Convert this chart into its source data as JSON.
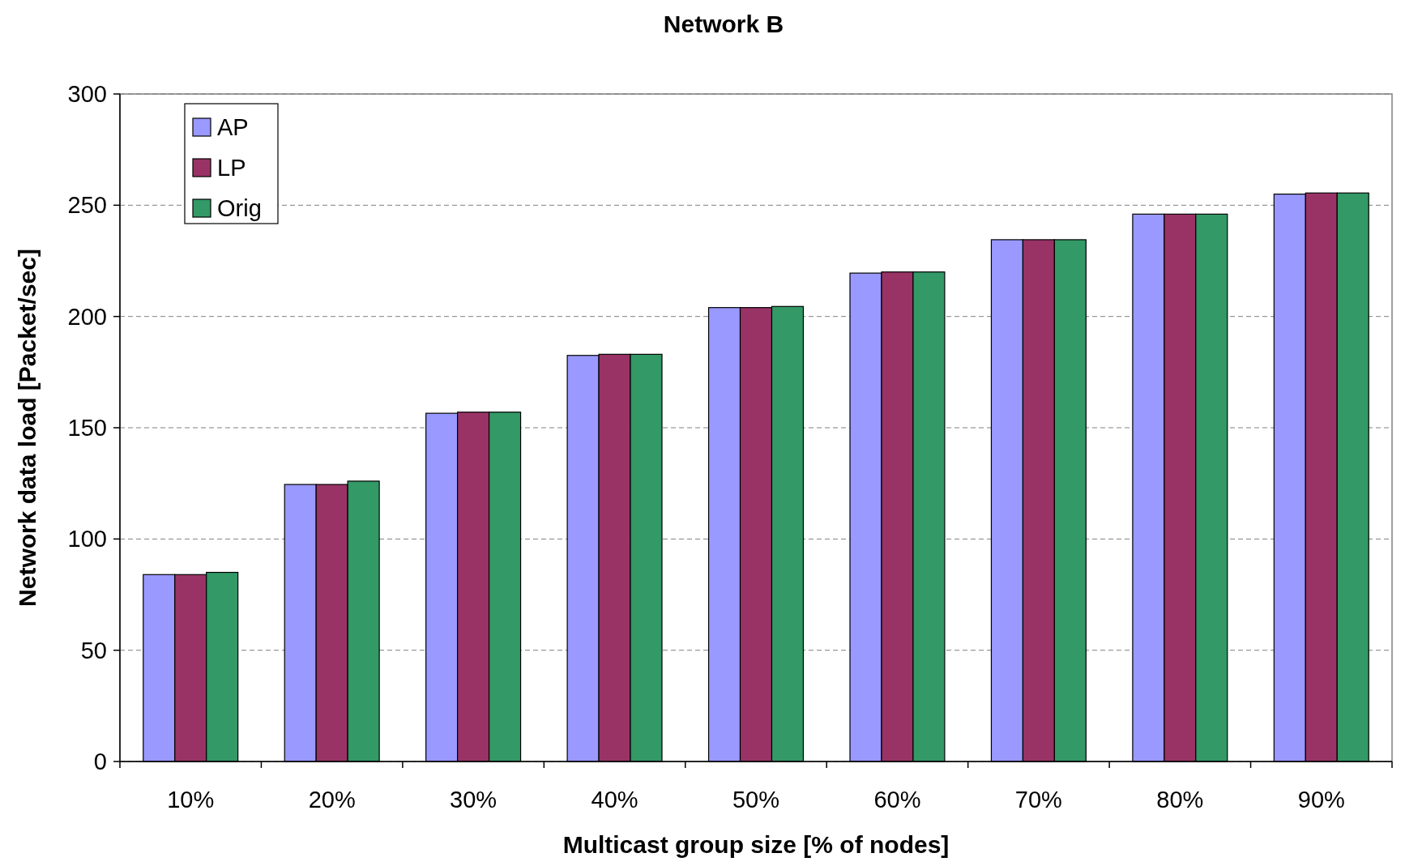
{
  "chart_data": {
    "type": "bar",
    "title": "Network B",
    "xlabel": "Multicast group size [% of nodes]",
    "ylabel": "Network data load [Packet/sec]",
    "categories": [
      "10%",
      "20%",
      "30%",
      "40%",
      "50%",
      "60%",
      "70%",
      "80%",
      "90%"
    ],
    "series": [
      {
        "name": "AP",
        "color": "#9999ff",
        "values": [
          84,
          124.5,
          156.5,
          182.5,
          204,
          219.5,
          234.5,
          246,
          255
        ]
      },
      {
        "name": "LP",
        "color": "#993366",
        "values": [
          84,
          124.5,
          157,
          183,
          204,
          220,
          234.5,
          246,
          255.5
        ]
      },
      {
        "name": "Orig",
        "color": "#339966",
        "values": [
          85,
          126,
          157,
          183,
          204.5,
          220,
          234.5,
          246,
          255.5
        ]
      }
    ],
    "ylim": [
      0,
      300
    ],
    "yticks": [
      0,
      50,
      100,
      150,
      200,
      250,
      300
    ],
    "grid": "y",
    "legend": "top left"
  }
}
